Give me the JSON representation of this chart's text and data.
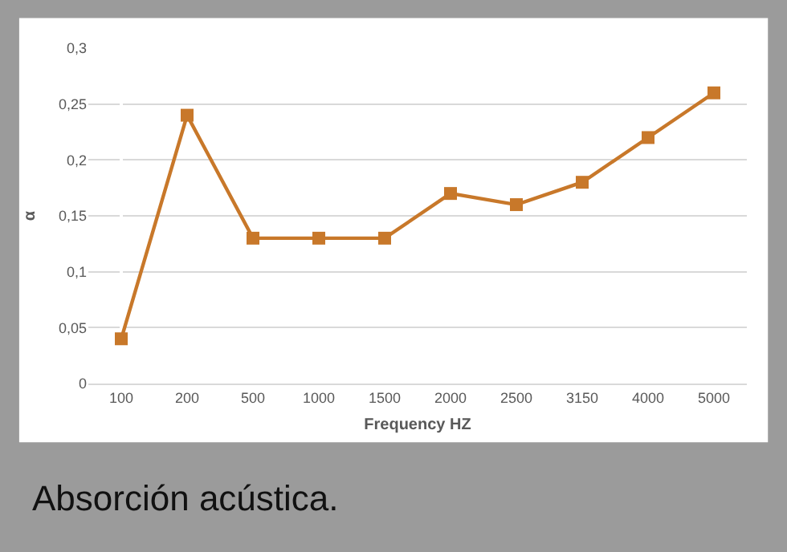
{
  "chart_data": {
    "type": "line",
    "categories": [
      "100",
      "200",
      "500",
      "1000",
      "1500",
      "2000",
      "2500",
      "3150",
      "4000",
      "5000"
    ],
    "series": [
      {
        "color": "#c8782a",
        "values": [
          0.04,
          0.24,
          0.13,
          0.13,
          0.13,
          0.17,
          0.16,
          0.18,
          0.22,
          0.26
        ]
      }
    ],
    "xlabel": "Frequency HZ",
    "ylabel": "α",
    "ylim": [
      0,
      0.3
    ],
    "yticks": [
      0,
      {
        "value": 0.05,
        "label": "0,05"
      },
      {
        "value": 0.1,
        "label": "0,1"
      },
      {
        "value": 0.15,
        "label": "0,15"
      },
      {
        "value": 0.2,
        "label": "0,2"
      },
      {
        "value": 0.25,
        "label": "0,25"
      },
      {
        "value": 0.3,
        "label": "0,3"
      }
    ],
    "grid": "y",
    "marker": "square",
    "line_style": "solid",
    "annotations": [
      "Absorción acústica."
    ]
  }
}
